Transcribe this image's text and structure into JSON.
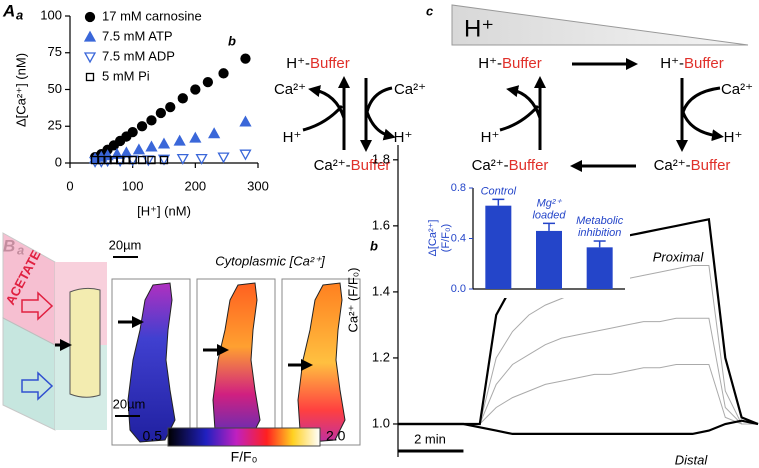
{
  "figure": {
    "panel_labels": [
      "A",
      "a",
      "b",
      "c",
      "B",
      "a",
      "b"
    ],
    "diagram_b": {
      "top": {
        "species": "H⁺-",
        "buffer": "Buffer"
      },
      "bottom": {
        "species": "Ca²⁺-",
        "buffer": "Buffer"
      },
      "ca_out": "Ca²⁺",
      "ca_in": "Ca²⁺",
      "h_in": "H⁺",
      "h_out": "H⁺"
    },
    "diagram_c": {
      "gradient_label": "H⁺",
      "top_left": {
        "species": "H⁺-",
        "buffer": "Buffer"
      },
      "top_right": {
        "species": "H⁺-",
        "buffer": "Buffer"
      },
      "bottom_left": {
        "species": "Ca²⁺-",
        "buffer": "Buffer"
      },
      "bottom_right": {
        "species": "Ca²⁺-",
        "buffer": "Buffer"
      },
      "ca_in": "Ca²⁺",
      "h_out": "H⁺",
      "h_in": "H⁺"
    },
    "panel_Ba": {
      "acetate": "ACETATE",
      "scale_top": "20µm",
      "scale_inner": "20µm",
      "title": "Cytoplasmic [Ca²⁺]",
      "colorbar": {
        "range": [
          0.5,
          2
        ],
        "ticks": [
          0.5,
          {
            "value": 2,
            "label": "2.0"
          }
        ],
        "label": "F/F₀"
      }
    }
  },
  "chart_data": [
    {
      "type": "scatter",
      "x_label": "[H⁺] (nM)",
      "y_label": "Δ[Ca²⁺] (nM)",
      "xlim": [
        0,
        300
      ],
      "ylim": [
        0,
        100
      ],
      "xticks": [
        0,
        100,
        200,
        300
      ],
      "yticks": [
        0,
        25,
        50,
        75,
        100
      ],
      "series": [
        {
          "name": "17 mM carnosine",
          "color": "#000000",
          "marker": "circle",
          "filled": true,
          "x": [
            40,
            50,
            60,
            70,
            80,
            90,
            100,
            115,
            130,
            145,
            160,
            180,
            200,
            220,
            245,
            280
          ],
          "values": [
            4,
            6,
            9,
            12,
            15,
            18,
            21,
            25,
            29,
            34,
            38,
            44,
            50,
            55,
            61,
            71
          ]
        },
        {
          "name": "7.5 mM ATP",
          "color": "#3a67d9",
          "marker": "triangle",
          "filled": true,
          "x": [
            40,
            50,
            60,
            75,
            90,
            110,
            130,
            150,
            175,
            200,
            230,
            280
          ],
          "values": [
            3,
            4,
            5,
            6,
            7,
            9,
            11,
            13,
            15,
            17,
            20,
            28
          ]
        },
        {
          "name": "7.5 mM ADP",
          "color": "#3a67d9",
          "marker": "triangle-down",
          "filled": false,
          "x": [
            40,
            50,
            60,
            80,
            100,
            125,
            150,
            180,
            210,
            245,
            280
          ],
          "values": [
            1,
            1,
            1.5,
            1.5,
            2,
            2,
            2.5,
            3,
            3,
            4,
            6
          ]
        },
        {
          "name": "5 mM Pi",
          "color": "#000000",
          "marker": "square",
          "filled": false,
          "x": [
            40,
            50,
            60,
            70,
            80,
            90,
            100,
            115,
            130,
            150
          ],
          "values": [
            2,
            2,
            2,
            2,
            2,
            2,
            2,
            2,
            2,
            2
          ]
        }
      ]
    },
    {
      "type": "line",
      "y_label": "Ca²⁺ (F/F₀)",
      "xlim": [
        0,
        11
      ],
      "ylim": [
        0.9,
        1.86
      ],
      "yticks": [
        {
          "value": 1,
          "label": "1.0"
        },
        1.2,
        1.4,
        1.6,
        1.8
      ],
      "scale_bar": {
        "value": 2,
        "label": "2 min"
      },
      "x": [
        0,
        0.5,
        1,
        1.5,
        2,
        2.5,
        3,
        3.5,
        4,
        4.5,
        5,
        5.5,
        6,
        6.5,
        7,
        7.5,
        8,
        8.5,
        9,
        9.5,
        10,
        10.5,
        11
      ],
      "series": [
        {
          "name": "Proximal",
          "color": "#000000",
          "values": [
            1,
            1,
            1,
            1,
            1,
            1,
            1.33,
            1.42,
            1.46,
            1.49,
            1.51,
            1.53,
            1.55,
            1.56,
            1.57,
            1.58,
            1.59,
            1.6,
            1.61,
            1.62,
            1.2,
            1.02,
            1
          ]
        },
        {
          "name": "Distal",
          "color": "#000000",
          "values": [
            1,
            1,
            1,
            1,
            1,
            0.99,
            0.98,
            0.97,
            0.97,
            0.97,
            0.97,
            0.97,
            0.97,
            0.97,
            0.97,
            0.97,
            0.97,
            0.97,
            0.97,
            0.98,
            1,
            1.01,
            1
          ]
        },
        {
          "color": "#aaaaaa",
          "values": [
            1,
            1,
            1,
            1,
            1,
            1,
            1.2,
            1.28,
            1.33,
            1.36,
            1.38,
            1.4,
            1.42,
            1.43,
            1.44,
            1.45,
            1.46,
            1.47,
            1.48,
            1.48,
            1.1,
            1,
            1
          ]
        },
        {
          "color": "#aaaaaa",
          "values": [
            1,
            1,
            1,
            1,
            1,
            1,
            1.12,
            1.18,
            1.21,
            1.24,
            1.26,
            1.27,
            1.28,
            1.29,
            1.3,
            1.31,
            1.31,
            1.32,
            1.32,
            1.32,
            1.05,
            1,
            1
          ]
        },
        {
          "color": "#aaaaaa",
          "values": [
            1,
            1,
            1,
            1,
            1,
            1,
            1.05,
            1.08,
            1.1,
            1.12,
            1.13,
            1.14,
            1.15,
            1.15,
            1.16,
            1.17,
            1.17,
            1.18,
            1.18,
            1.18,
            1.02,
            1,
            1
          ]
        }
      ]
    },
    {
      "type": "bar",
      "y_label": [
        "Δ[Ca²⁺]",
        "(F/F₀)"
      ],
      "categories": [
        [
          "Control"
        ],
        [
          "Mg²⁺",
          "loaded"
        ],
        [
          "Metabolic",
          "inhibition"
        ]
      ],
      "values": [
        0.66,
        0.46,
        0.33
      ],
      "errors": [
        0.05,
        0.06,
        0.05
      ],
      "color": "#2445c9",
      "ylim": [
        0,
        0.8
      ],
      "yticks": [
        {
          "value": 0,
          "label": "0.0"
        },
        0.4,
        0.8
      ]
    }
  ]
}
